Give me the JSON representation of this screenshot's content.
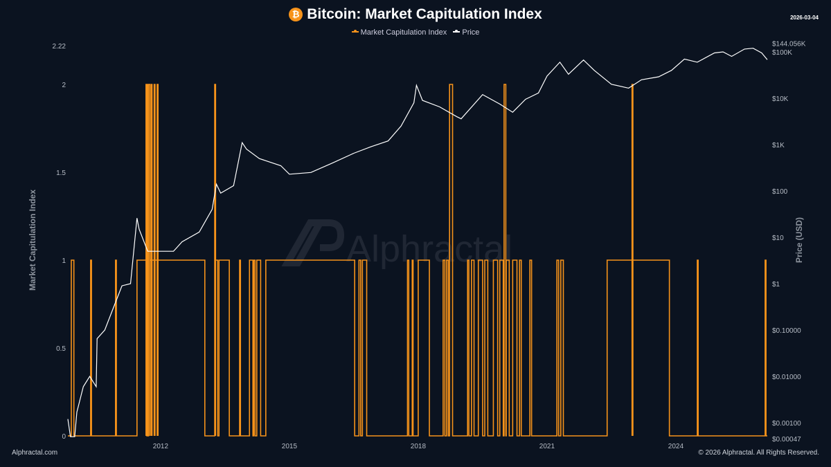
{
  "header": {
    "title": "Bitcoin: Market Capitulation Index",
    "date": "2026-03-04",
    "logo_icon": "bitcoin-icon"
  },
  "watermark": "Alphractal",
  "footer": {
    "left": "Alphractal.com",
    "right": "© 2026 Alphractal. All Rights Reserved."
  },
  "chart_data": {
    "type": "line",
    "title": "Bitcoin: Market Capitulation Index",
    "legend": {
      "position": "top",
      "entries": [
        "Market Capitulation Index",
        "Price"
      ]
    },
    "colors": {
      "Market Capitulation Index": "#f7931a",
      "Price": "#ffffff",
      "background": "#0b1320"
    },
    "grid": false,
    "xaxis": {
      "range": [
        2009.84,
        2026.13
      ],
      "ticks": [
        2012,
        2015,
        2018,
        2021,
        2024
      ],
      "tick_labels": [
        "2012",
        "2015",
        "2018",
        "2021",
        "2024"
      ]
    },
    "yaxis_left": {
      "label": "Market Capitulation Index",
      "range": [
        0,
        2.22
      ],
      "ticks": [
        0,
        0.5,
        1,
        1.5,
        2,
        2.22
      ],
      "tick_labels": [
        "0",
        "0.5",
        "1",
        "1.5",
        "2",
        "2.22"
      ]
    },
    "yaxis_right": {
      "label": "Price (USD)",
      "scale": "log",
      "range": [
        0.00047,
        144056
      ],
      "ticks": [
        0.00047,
        0.001,
        0.01,
        0.1,
        1,
        10,
        100,
        1000,
        10000,
        100000,
        144056
      ],
      "tick_labels": [
        "$0.00047",
        "$0.00100",
        "$0.01000",
        "$0.10000",
        "$1",
        "$10",
        "$100",
        "$1K",
        "$10K",
        "$100K",
        "$144.056K"
      ]
    },
    "series": [
      {
        "name": "Market Capitulation Index",
        "axis": "left",
        "step": true,
        "intervals_note_values": "[start_year,end_year,value]; 0 elsewhere",
        "intervals": [
          [
            2009.92,
            2009.98,
            1
          ],
          [
            2010.37,
            2010.39,
            1
          ],
          [
            2010.95,
            2010.97,
            1
          ],
          [
            2011.45,
            2011.66,
            1
          ],
          [
            2011.66,
            2011.68,
            2
          ],
          [
            2011.69,
            2011.71,
            2
          ],
          [
            2011.72,
            2011.75,
            2
          ],
          [
            2011.75,
            2011.78,
            1
          ],
          [
            2011.78,
            2011.8,
            2
          ],
          [
            2011.8,
            2011.85,
            1
          ],
          [
            2011.85,
            2011.87,
            2
          ],
          [
            2011.87,
            2011.92,
            1
          ],
          [
            2011.92,
            2011.94,
            2
          ],
          [
            2011.94,
            2013.03,
            1
          ],
          [
            2013.26,
            2013.28,
            2
          ],
          [
            2013.28,
            2013.33,
            1
          ],
          [
            2013.36,
            2013.6,
            1
          ],
          [
            2013.84,
            2013.86,
            1
          ],
          [
            2014.07,
            2014.15,
            1
          ],
          [
            2014.17,
            2014.2,
            1
          ],
          [
            2014.24,
            2014.33,
            1
          ],
          [
            2014.45,
            2016.52,
            1
          ],
          [
            2016.62,
            2016.66,
            1
          ],
          [
            2016.7,
            2016.8,
            1
          ],
          [
            2017.75,
            2017.78,
            1
          ],
          [
            2017.86,
            2017.88,
            1
          ],
          [
            2018.0,
            2018.26,
            1
          ],
          [
            2018.58,
            2018.62,
            1
          ],
          [
            2018.66,
            2018.7,
            1
          ],
          [
            2018.73,
            2018.8,
            2
          ],
          [
            2019.15,
            2019.18,
            1
          ],
          [
            2019.24,
            2019.3,
            1
          ],
          [
            2019.4,
            2019.5,
            1
          ],
          [
            2019.55,
            2019.62,
            1
          ],
          [
            2019.75,
            2019.85,
            1
          ],
          [
            2019.9,
            2019.98,
            1
          ],
          [
            2020.0,
            2020.04,
            2
          ],
          [
            2020.05,
            2020.12,
            1
          ],
          [
            2020.2,
            2020.3,
            1
          ],
          [
            2020.36,
            2020.4,
            1
          ],
          [
            2020.6,
            2020.64,
            1
          ],
          [
            2021.23,
            2021.27,
            1
          ],
          [
            2021.32,
            2021.38,
            1
          ],
          [
            2022.4,
            2022.98,
            1
          ],
          [
            2022.98,
            2023.0,
            2
          ],
          [
            2023.0,
            2023.85,
            1
          ],
          [
            2024.5,
            2024.52,
            1
          ],
          [
            2026.08,
            2026.1,
            1
          ]
        ]
      },
      {
        "name": "Price",
        "axis": "right",
        "points": [
          [
            2009.84,
            0.0012
          ],
          [
            2009.9,
            0.0005
          ],
          [
            2010.0,
            0.0005
          ],
          [
            2010.05,
            0.0017
          ],
          [
            2010.2,
            0.006
          ],
          [
            2010.35,
            0.01
          ],
          [
            2010.5,
            0.006
          ],
          [
            2010.52,
            0.065
          ],
          [
            2010.7,
            0.1
          ],
          [
            2010.9,
            0.3
          ],
          [
            2011.1,
            0.9
          ],
          [
            2011.3,
            1
          ],
          [
            2011.45,
            26
          ],
          [
            2011.5,
            15
          ],
          [
            2011.7,
            5
          ],
          [
            2011.9,
            5
          ],
          [
            2012.3,
            5
          ],
          [
            2012.5,
            8
          ],
          [
            2012.9,
            13
          ],
          [
            2013.2,
            40
          ],
          [
            2013.3,
            140
          ],
          [
            2013.4,
            90
          ],
          [
            2013.7,
            130
          ],
          [
            2013.9,
            1100
          ],
          [
            2014.0,
            800
          ],
          [
            2014.3,
            500
          ],
          [
            2014.8,
            350
          ],
          [
            2015.0,
            230
          ],
          [
            2015.5,
            250
          ],
          [
            2016.0,
            400
          ],
          [
            2016.5,
            650
          ],
          [
            2016.9,
            900
          ],
          [
            2017.3,
            1200
          ],
          [
            2017.6,
            2500
          ],
          [
            2017.9,
            8000
          ],
          [
            2017.96,
            19000
          ],
          [
            2018.1,
            9000
          ],
          [
            2018.5,
            6500
          ],
          [
            2018.9,
            4000
          ],
          [
            2019.0,
            3600
          ],
          [
            2019.5,
            12000
          ],
          [
            2019.9,
            7500
          ],
          [
            2020.2,
            5000
          ],
          [
            2020.5,
            9500
          ],
          [
            2020.8,
            13000
          ],
          [
            2021.0,
            30000
          ],
          [
            2021.3,
            60000
          ],
          [
            2021.5,
            33000
          ],
          [
            2021.85,
            67000
          ],
          [
            2022.1,
            40000
          ],
          [
            2022.5,
            20000
          ],
          [
            2022.9,
            16500
          ],
          [
            2023.2,
            25000
          ],
          [
            2023.6,
            29000
          ],
          [
            2023.9,
            40000
          ],
          [
            2024.2,
            70000
          ],
          [
            2024.5,
            60000
          ],
          [
            2024.9,
            95000
          ],
          [
            2025.1,
            100000
          ],
          [
            2025.3,
            80000
          ],
          [
            2025.6,
            115000
          ],
          [
            2025.8,
            120000
          ],
          [
            2026.0,
            95000
          ],
          [
            2026.13,
            68000
          ]
        ]
      }
    ]
  }
}
